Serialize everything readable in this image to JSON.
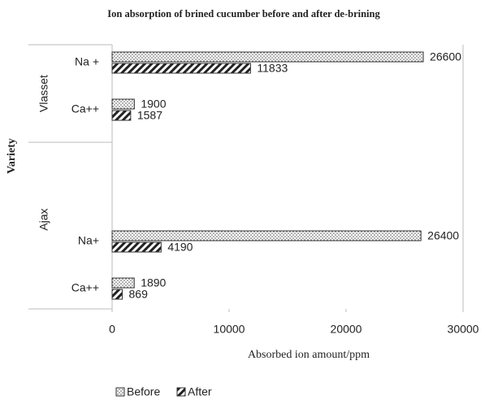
{
  "chart_data": {
    "type": "grouped_barh",
    "title": "Ion absorption of brined cucumber before and after de-brining",
    "x_label": "Absorbed ion amount/ppm",
    "y_label": "Variety",
    "groups": [
      {
        "label": "Vlasset",
        "categories": [
          "Na +",
          "Ca++"
        ]
      },
      {
        "label": "Ajax",
        "categories": [
          "Na+",
          "Ca++"
        ]
      }
    ],
    "series": [
      {
        "name": "Before",
        "color": "#333333",
        "pattern": "dots",
        "values": [
          26600,
          1900,
          26400,
          1890
        ]
      },
      {
        "name": "After",
        "color": "#333333",
        "pattern": "diagonal",
        "values": [
          11833,
          1587,
          4190,
          869
        ]
      }
    ],
    "xlim": [
      0,
      30000
    ],
    "xticks": [
      0,
      10000,
      20000,
      30000
    ],
    "legend": "bottom-left",
    "grid": false
  }
}
